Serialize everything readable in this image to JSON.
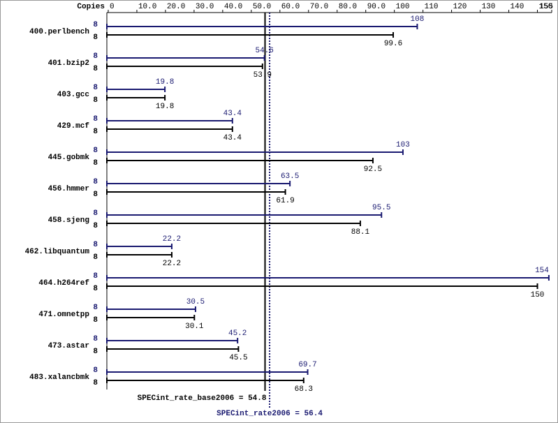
{
  "chart_data": {
    "type": "bar",
    "orientation": "horizontal",
    "copies_label": "Copies",
    "categories": [
      "400.perlbench",
      "401.bzip2",
      "403.gcc",
      "429.mcf",
      "445.gobmk",
      "456.hmmer",
      "458.sjeng",
      "462.libquantum",
      "464.h264ref",
      "471.omnetpp",
      "473.astar",
      "483.xalancbmk"
    ],
    "series": [
      {
        "color": "#191970",
        "copies": [
          8,
          8,
          8,
          8,
          8,
          8,
          8,
          8,
          8,
          8,
          8,
          8
        ],
        "values": [
          108,
          54.6,
          19.8,
          43.4,
          103,
          63.5,
          95.5,
          22.2,
          154,
          30.5,
          45.2,
          69.7
        ]
      },
      {
        "color": "#000000",
        "copies": [
          8,
          8,
          8,
          8,
          8,
          8,
          8,
          8,
          8,
          8,
          8,
          8
        ],
        "values": [
          99.6,
          53.9,
          19.8,
          43.4,
          92.5,
          61.9,
          88.1,
          22.2,
          150,
          30.1,
          45.5,
          68.3
        ]
      }
    ],
    "xlim": [
      0,
      155
    ],
    "xticks": [
      0,
      {
        "value": 10,
        "label": "10.0"
      },
      {
        "value": 20,
        "label": "20.0"
      },
      {
        "value": 30,
        "label": "30.0"
      },
      {
        "value": 40,
        "label": "40.0"
      },
      {
        "value": 50,
        "label": "50.0"
      },
      {
        "value": 60,
        "label": "60.0"
      },
      {
        "value": 70,
        "label": "70.0"
      },
      {
        "value": 80,
        "label": "80.0"
      },
      {
        "value": 90,
        "label": "90.0"
      },
      100,
      110,
      120,
      130,
      140,
      150,
      155
    ],
    "reference_lines": [
      {
        "value": 54.8,
        "label": "SPECint_rate_base2006 = 54.8",
        "color": "#000000",
        "style": "solid"
      },
      {
        "value": 56.4,
        "label": "SPECint_rate2006 = 56.4",
        "color": "#191970",
        "style": "dotted"
      }
    ]
  }
}
